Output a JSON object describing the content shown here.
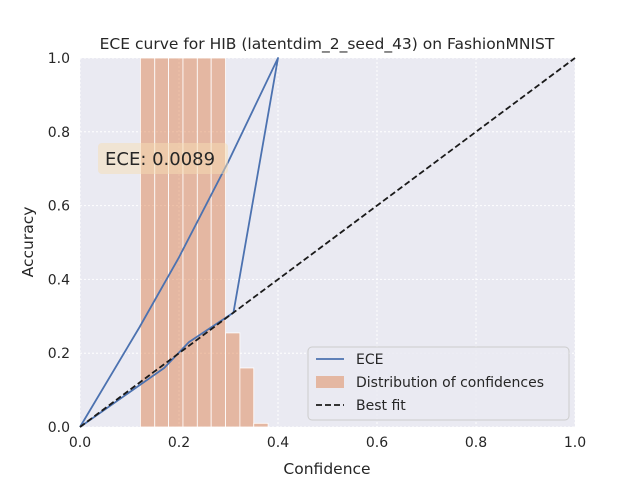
{
  "chart_data": {
    "type": "bar",
    "title": "ECE curve for HIB (latentdim_2_seed_43) on FashionMNIST",
    "xlabel": "Confidence",
    "ylabel": "Accuracy",
    "xlim": [
      0,
      1
    ],
    "ylim": [
      0,
      1
    ],
    "xticks": [
      "0.0",
      "0.2",
      "0.4",
      "0.6",
      "0.8",
      "1.0"
    ],
    "yticks": [
      "0.0",
      "0.2",
      "0.4",
      "0.6",
      "0.8",
      "1.0"
    ],
    "grid": true,
    "legend_position": "lower-right",
    "annotation": "ECE: 0.0089",
    "series": [
      {
        "name": "ECE",
        "type": "line",
        "color": "#4c72b0",
        "x": [
          0.0,
          0.17,
          0.22,
          0.31,
          0.4,
          0.3,
          0.2,
          0.12,
          0.0
        ],
        "y": [
          0.0,
          0.16,
          0.23,
          0.31,
          1.0,
          0.72,
          0.46,
          0.27,
          0.0
        ]
      },
      {
        "name": "Distribution of confidences",
        "type": "bar",
        "color": "#dd8452",
        "bins": [
          {
            "x0": 0.122,
            "x1": 0.151,
            "value": 1.0
          },
          {
            "x0": 0.151,
            "x1": 0.179,
            "value": 1.0
          },
          {
            "x0": 0.179,
            "x1": 0.208,
            "value": 1.0
          },
          {
            "x0": 0.208,
            "x1": 0.237,
            "value": 1.0
          },
          {
            "x0": 0.237,
            "x1": 0.265,
            "value": 1.0
          },
          {
            "x0": 0.265,
            "x1": 0.294,
            "value": 1.0
          },
          {
            "x0": 0.294,
            "x1": 0.323,
            "value": 0.255
          },
          {
            "x0": 0.323,
            "x1": 0.351,
            "value": 0.16
          },
          {
            "x0": 0.351,
            "x1": 0.38,
            "value": 0.01
          }
        ]
      },
      {
        "name": "Best fit",
        "type": "line",
        "style": "dashed",
        "color": "#1a1a1a",
        "x": [
          0,
          1
        ],
        "y": [
          0,
          1
        ]
      }
    ]
  }
}
